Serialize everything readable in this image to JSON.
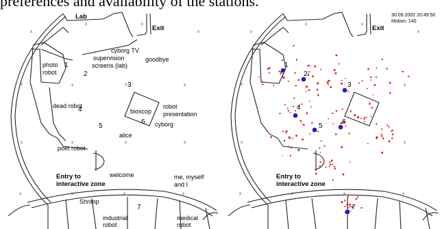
{
  "caption": "preferences and availability of the stations.",
  "left_map": {
    "labels": {
      "lab": "Lab",
      "exit": "Exit",
      "cyborg_tv": "cyborg TV",
      "supervision": "supervision",
      "screens_lab": "screens (lab)",
      "goodbye": "goodbye",
      "photo": "photo",
      "robot": "robot",
      "dead_robot": "dead robot",
      "bioscop": "bioscop",
      "robot2": "robot",
      "presentation": "presentation",
      "cyborg": "cyborg",
      "alice": "alice",
      "poet_robot": "poet robot",
      "welcome": "welcome",
      "entry_to": "Entry to",
      "interactive_zone": "interactive zone",
      "me_myself": "me, myself",
      "and_i": "and I",
      "shrimp": "Shrimp",
      "industrial": "industrial",
      "robot_ind": "robot",
      "medical": "medical",
      "robot_med": "robot"
    },
    "stations": [
      "1",
      "2",
      "3",
      "4",
      "5",
      "6",
      "7"
    ]
  },
  "right_map": {
    "timestamp": "30.09.2002 20:49:50",
    "motion": "Motion: 140",
    "labels": {
      "exit": "Exit",
      "entry_to": "Entry to",
      "interactive_zone": "interactive zone"
    },
    "stations": [
      "1",
      "2",
      "3",
      "4",
      "5",
      "6",
      "7"
    ],
    "robot_marker_color": "#1a1adc",
    "motion_color": "#e01010"
  }
}
